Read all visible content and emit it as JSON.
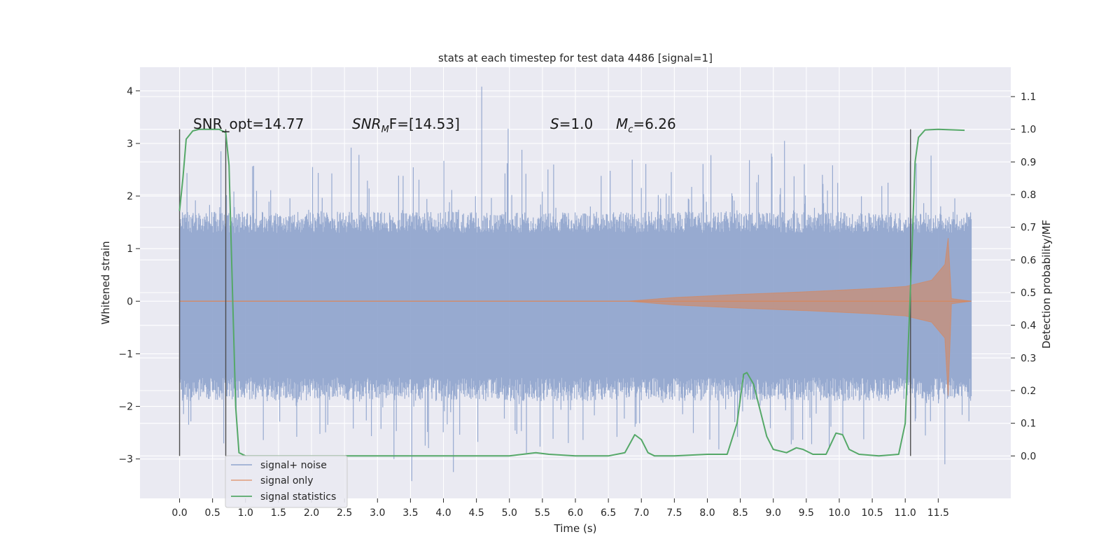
{
  "chart_data": {
    "type": "line",
    "title": "stats at each timestep for test data 4486 [signal=1]",
    "xlabel": "Time (s)",
    "ylabel_left": "Whitened strain",
    "ylabel_right": "Detection probability/MF",
    "xlim": [
      -0.6,
      12.6
    ],
    "ylim_left": [
      -3.75,
      4.45
    ],
    "ylim_right": [
      -0.13,
      1.19
    ],
    "x_ticks": [
      0.0,
      0.5,
      1.0,
      1.5,
      2.0,
      2.5,
      3.0,
      3.5,
      4.0,
      4.5,
      5.0,
      5.5,
      6.0,
      6.5,
      7.0,
      7.5,
      8.0,
      8.5,
      9.0,
      9.5,
      10.0,
      10.5,
      11.0,
      11.5
    ],
    "x_tick_labels": [
      "0.0",
      "0.5",
      "1.0",
      "1.5",
      "2.0",
      "2.5",
      "3.0",
      "3.5",
      "4.0",
      "4.5",
      "5.0",
      "5.5",
      "6.0",
      "6.5",
      "7.0",
      "7.5",
      "8.0",
      "8.5",
      "9.0",
      "9.5",
      "10.0",
      "10.5",
      "11.0",
      "11.5"
    ],
    "y_left_ticks": [
      4,
      3,
      2,
      1,
      0,
      -1,
      -2,
      -3
    ],
    "y_left_tick_labels": [
      "4",
      "3",
      "2",
      "1",
      "0",
      "−1",
      "−2",
      "−3"
    ],
    "y_right_ticks": [
      1.1,
      1.0,
      0.9,
      0.8,
      0.7,
      0.6,
      0.5,
      0.4,
      0.3,
      0.2,
      0.1,
      0.0
    ],
    "y_right_tick_labels": [
      "1.1",
      "1.0",
      "0.9",
      "0.8",
      "0.7",
      "0.6",
      "0.5",
      "0.4",
      "0.3",
      "0.2",
      "0.1",
      "0.0"
    ],
    "grid": true,
    "legend_position": "lower-left",
    "annotations": [
      {
        "text": "SNR_opt=14.77"
      },
      {
        "text": "F=[14.53]",
        "italic_prefix": "SNR",
        "subscript": "M"
      },
      {
        "text": "=1.0",
        "italic_prefix": "S"
      },
      {
        "text": "=6.26",
        "italic_prefix": "M",
        "subscript": "c"
      }
    ],
    "vertical_markers": [
      0.0,
      0.7,
      11.08
    ],
    "series": [
      {
        "name": "signal+ noise",
        "color": "#8fa4cd",
        "axis": "left",
        "description_values": {
          "x_range": [
            0.0,
            12.0
          ],
          "typical_band": [
            -1.6,
            1.5
          ],
          "max_spike": 4.08,
          "min_spike": -3.42
        }
      },
      {
        "name": "signal only",
        "color": "#dd8452",
        "axis": "left",
        "envelope": {
          "x": [
            0.0,
            6.8,
            7.5,
            8.5,
            9.5,
            10.5,
            11.0,
            11.4,
            11.6,
            11.65,
            11.7,
            12.0
          ],
          "amplitude": [
            0.0,
            0.0,
            0.07,
            0.13,
            0.18,
            0.24,
            0.28,
            0.4,
            0.7,
            1.2,
            0.05,
            0.0
          ]
        }
      },
      {
        "name": "signal statistics",
        "color": "#55a868",
        "axis": "right",
        "x": [
          0.0,
          0.05,
          0.1,
          0.2,
          0.3,
          0.5,
          0.6,
          0.7,
          0.75,
          0.8,
          0.85,
          0.9,
          1.0,
          2.0,
          3.0,
          4.0,
          5.0,
          5.2,
          5.4,
          5.6,
          6.0,
          6.5,
          6.75,
          6.9,
          7.0,
          7.1,
          7.2,
          7.5,
          8.0,
          8.3,
          8.45,
          8.55,
          8.6,
          8.7,
          8.8,
          8.9,
          9.0,
          9.2,
          9.35,
          9.45,
          9.6,
          9.8,
          9.95,
          10.05,
          10.15,
          10.3,
          10.6,
          10.9,
          11.0,
          11.1,
          11.15,
          11.2,
          11.3,
          11.5,
          11.9
        ],
        "y": [
          0.75,
          0.85,
          0.97,
          0.995,
          1.0,
          1.0,
          1.0,
          0.99,
          0.89,
          0.52,
          0.15,
          0.01,
          0.0,
          0.0,
          0.0,
          0.0,
          0.0,
          0.005,
          0.01,
          0.005,
          0.0,
          0.0,
          0.01,
          0.065,
          0.05,
          0.01,
          0.0,
          0.0,
          0.005,
          0.005,
          0.1,
          0.25,
          0.255,
          0.22,
          0.14,
          0.06,
          0.02,
          0.01,
          0.025,
          0.02,
          0.005,
          0.005,
          0.07,
          0.065,
          0.02,
          0.005,
          0.0,
          0.005,
          0.1,
          0.62,
          0.9,
          0.975,
          0.998,
          1.0,
          0.997
        ]
      }
    ]
  }
}
